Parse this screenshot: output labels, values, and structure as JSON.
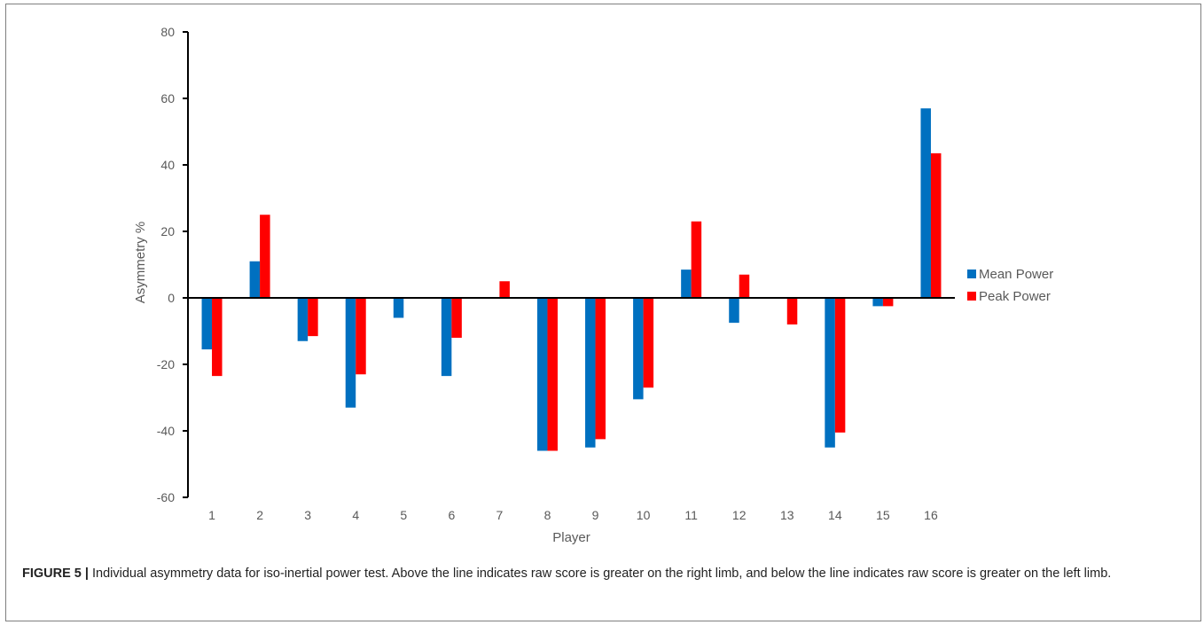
{
  "caption": {
    "label": "FIGURE 5 |",
    "text": "Individual asymmetry data for iso-inertial power test. Above the line indicates raw score is greater on the right limb, and below the line indicates raw score is greater on the left limb."
  },
  "chart_data": {
    "type": "bar",
    "title": "",
    "xlabel": "Player",
    "ylabel": "Asymmetry %",
    "ylim": [
      -60,
      80
    ],
    "yticks": [
      80,
      60,
      40,
      20,
      0,
      -20,
      -40,
      -60
    ],
    "grid": false,
    "legend_position": "right",
    "categories": [
      "1",
      "2",
      "3",
      "4",
      "5",
      "6",
      "7",
      "8",
      "9",
      "10",
      "11",
      "12",
      "13",
      "14",
      "15",
      "16"
    ],
    "series": [
      {
        "name": "Mean Power",
        "color": "#0070c0",
        "values": [
          -15.5,
          11,
          -13,
          -33,
          -6,
          -23.5,
          0,
          -46,
          -45,
          -30.5,
          8.5,
          -7.5,
          0,
          -45,
          -2.5,
          57
        ]
      },
      {
        "name": "Peak Power",
        "color": "#ff0000",
        "values": [
          -23.5,
          25,
          -11.5,
          -23,
          0,
          -12,
          5,
          -46,
          -42.5,
          -27,
          23,
          7,
          -8,
          -40.5,
          -2.5,
          43.5
        ]
      }
    ]
  }
}
